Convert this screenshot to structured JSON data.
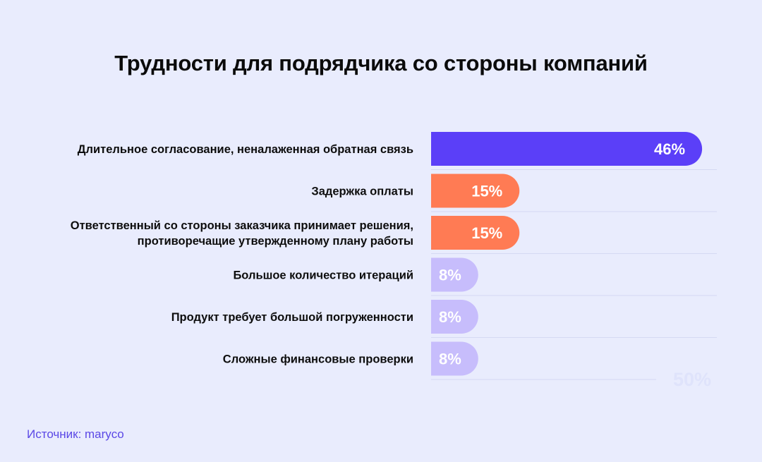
{
  "title": "Трудности для подрядчика со стороны компаний",
  "source": "Источник: maryco",
  "colors": {
    "background": "#e9ecfd",
    "primary": "#5b3ff8",
    "secondary": "#ff7b54",
    "tertiary": "#c7bdfc"
  },
  "chart_data": {
    "type": "bar",
    "orientation": "horizontal",
    "categories": [
      [
        "Длительное согласование, неналаженная обратная связь"
      ],
      [
        "Задержка оплаты"
      ],
      [
        "Ответственный со стороны заказчика принимает решения,",
        "противоречащие утвержденному плану работы"
      ],
      [
        "Большое количество итераций"
      ],
      [
        "Продукт требует большой погруженности"
      ],
      [
        "Сложные финансовые проверки"
      ]
    ],
    "values": [
      46,
      15,
      15,
      8,
      8,
      8
    ],
    "value_labels": [
      "46%",
      "15%",
      "15%",
      "8%",
      "8%",
      "8%"
    ],
    "bar_colors": [
      "#5b3ff8",
      "#ff7b54",
      "#ff7b54",
      "#c7bdfc",
      "#c7bdfc",
      "#c7bdfc"
    ],
    "xlim": [
      0,
      50
    ],
    "axis_max_label": "50%",
    "grid": "horizontal row separators"
  }
}
